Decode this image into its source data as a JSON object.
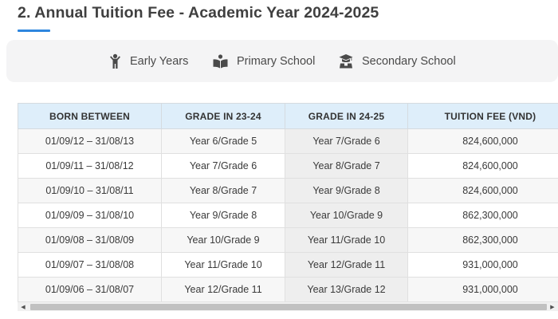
{
  "page": {
    "title": "2. Annual Tuition Fee - Academic Year 2024-2025"
  },
  "tabs": [
    {
      "label": "Early Years",
      "icon": "child-icon"
    },
    {
      "label": "Primary School",
      "icon": "book-icon"
    },
    {
      "label": "Secondary School",
      "icon": "graduation-cap-icon"
    }
  ],
  "table": {
    "headers": [
      "BORN BETWEEN",
      "GRADE IN 23-24",
      "GRADE IN 24-25",
      "TUITION FEE (VND)"
    ],
    "rows": [
      [
        "01/09/12 – 31/08/13",
        "Year 6/Grade 5",
        "Year 7/Grade 6",
        "824,600,000"
      ],
      [
        "01/09/11 – 31/08/12",
        "Year 7/Grade 6",
        "Year 8/Grade 7",
        "824,600,000"
      ],
      [
        "01/09/10 – 31/08/11",
        "Year 8/Grade 7",
        "Year 9/Grade 8",
        "824,600,000"
      ],
      [
        "01/09/09 – 31/08/10",
        "Year 9/Grade 8",
        "Year 10/Grade 9",
        "862,300,000"
      ],
      [
        "01/09/08 – 31/08/09",
        "Year 10/Grade 9",
        "Year 11/Grade 10",
        "862,300,000"
      ],
      [
        "01/09/07 – 31/08/08",
        "Year 11/Grade 10",
        "Year 12/Grade 11",
        "931,000,000"
      ],
      [
        "01/09/06 – 31/08/07",
        "Year 12/Grade 11",
        "Year 13/Grade 12",
        "931,000,000"
      ]
    ]
  },
  "scrollbar": {
    "left_arrow": "◀",
    "right_arrow": "▶"
  },
  "colors": {
    "accent": "#2e86de",
    "header_bg": "#deeefa",
    "tab_bar_bg": "#f4f4f5",
    "highlight_col": "#eeeeee"
  }
}
